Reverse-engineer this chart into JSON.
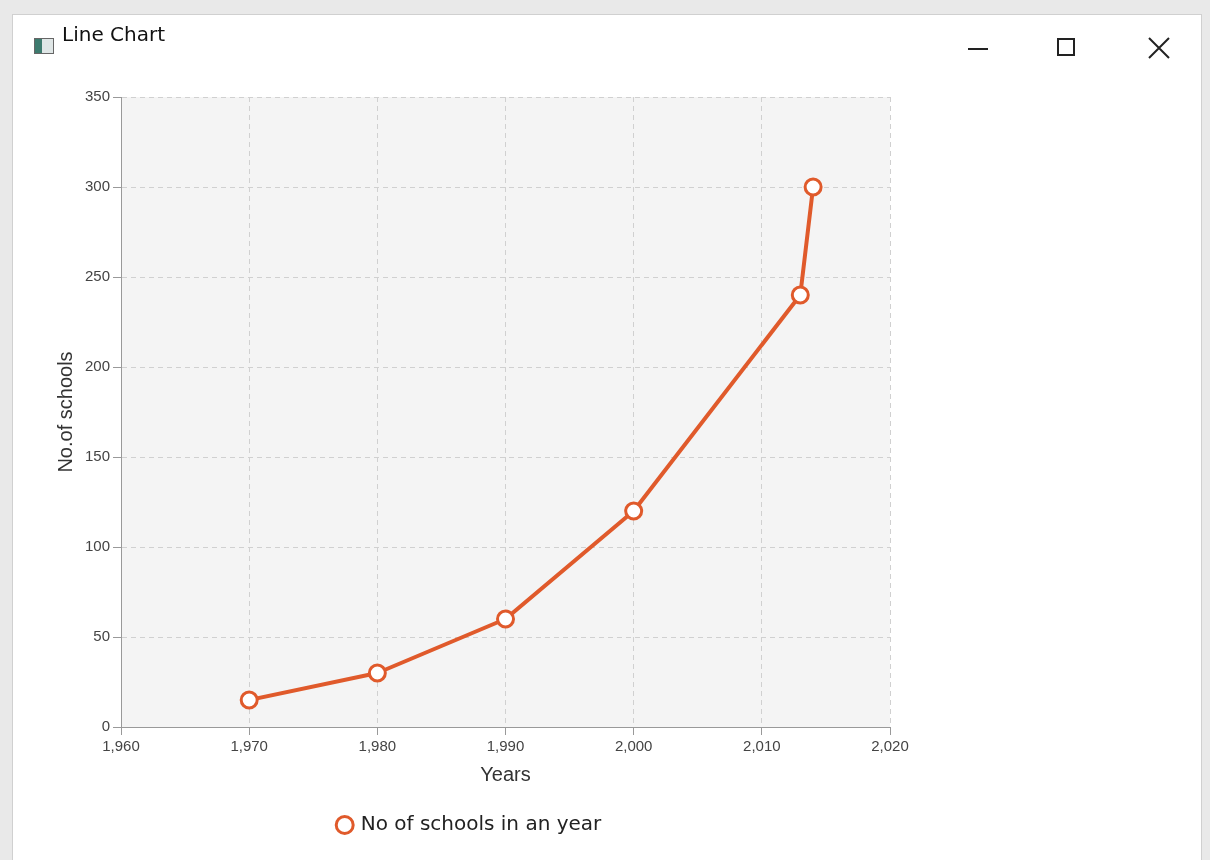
{
  "chart_data": {
    "type": "line",
    "title": "Line Chart",
    "xlabel": "Years",
    "ylabel": "No.of schools",
    "x": [
      1970,
      1980,
      1990,
      2000,
      2013,
      2014
    ],
    "series": [
      {
        "name": "No of schools in an year",
        "color": "#e05a2b",
        "values": [
          15,
          30,
          60,
          120,
          240,
          300
        ]
      }
    ],
    "xlim": [
      1960,
      2020
    ],
    "xticks": [
      {
        "value": 1960,
        "label": "1,960"
      },
      {
        "value": 1970,
        "label": "1,970"
      },
      {
        "value": 1980,
        "label": "1,980"
      },
      {
        "value": 1990,
        "label": "1,990"
      },
      {
        "value": 2000,
        "label": "2,000"
      },
      {
        "value": 2010,
        "label": "2,010"
      },
      {
        "value": 2020,
        "label": "2,020"
      }
    ],
    "ylim": [
      0,
      350
    ],
    "yticks": [
      0,
      50,
      100,
      150,
      200,
      250,
      300,
      350
    ],
    "grid": true,
    "legend": "bottom",
    "marker": "circle",
    "line_style": "solid"
  }
}
